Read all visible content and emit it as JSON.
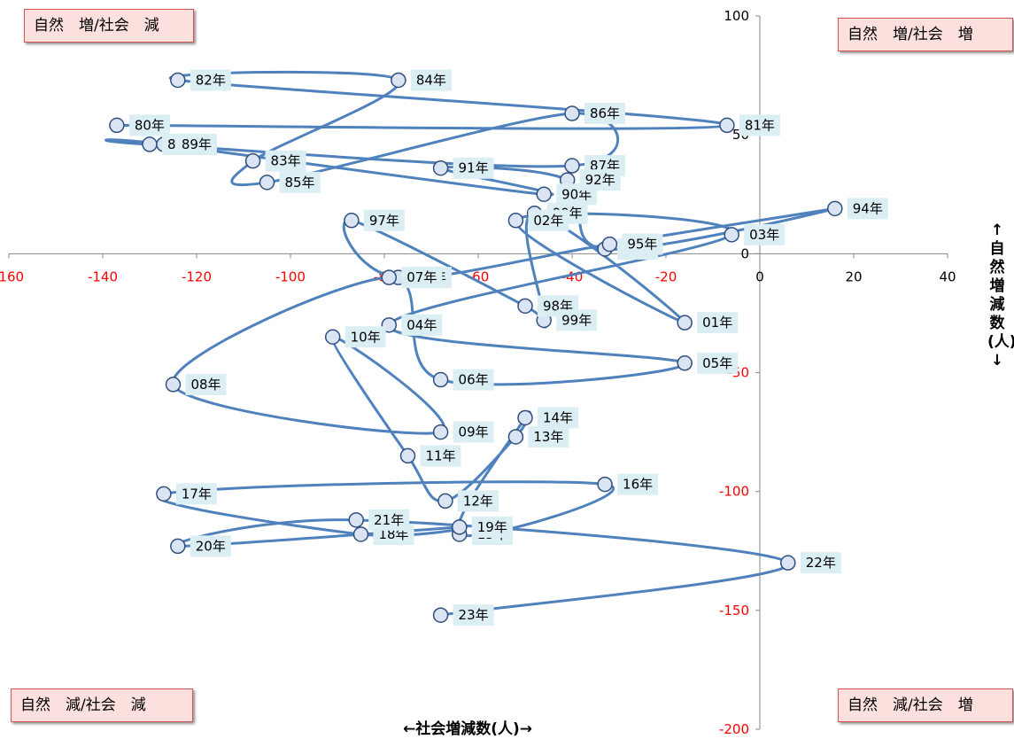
{
  "quadrants": {
    "top_left": "自然　増/社会　減",
    "top_right": "自然　増/社会　増",
    "bottom_left": "自然　減/社会　減",
    "bottom_right": "自然　減/社会　増"
  },
  "chart_data": {
    "type": "scatter",
    "title": "",
    "xlabel": "←社会増減数(人)→",
    "ylabel": "↑自然増減数(人)↓",
    "xlim": [
      -160,
      40
    ],
    "ylim": [
      -200,
      100
    ],
    "x_ticks": [
      -160,
      -140,
      -120,
      -100,
      -80,
      -60,
      -40,
      -20,
      0,
      20,
      40
    ],
    "y_ticks": [
      100,
      50,
      0,
      -50,
      -100,
      -150,
      -200
    ],
    "negative_tick_color": "#ff0000",
    "positive_tick_color": "#000000",
    "line_color": "#4f81bd",
    "marker_fill": "#dbe4f3",
    "marker_edge": "#2f4f7f",
    "label_bg": "#daeef3",
    "grid": false,
    "legend": "none",
    "points": [
      {
        "label": "80年",
        "x": -137,
        "y": 54
      },
      {
        "label": "81年",
        "x": -7,
        "y": 54
      },
      {
        "label": "82年",
        "x": -124,
        "y": 73
      },
      {
        "label": "84年",
        "x": -77,
        "y": 73
      },
      {
        "label": "83年",
        "x": -108,
        "y": 39
      },
      {
        "label": "85年",
        "x": -105,
        "y": 30
      },
      {
        "label": "86年",
        "x": -40,
        "y": 59
      },
      {
        "label": "87年",
        "x": -40,
        "y": 37
      },
      {
        "label": "88年",
        "x": -130,
        "y": 46
      },
      {
        "label": "89年",
        "x": -127,
        "y": 46
      },
      {
        "label": "90年",
        "x": -46,
        "y": 25
      },
      {
        "label": "91年",
        "x": -68,
        "y": 36
      },
      {
        "label": "92年",
        "x": -41,
        "y": 31
      },
      {
        "label": "93年",
        "x": -33,
        "y": 2
      },
      {
        "label": "94年",
        "x": 16,
        "y": 19
      },
      {
        "label": "95年",
        "x": -32,
        "y": 4
      },
      {
        "label": "96年",
        "x": -77,
        "y": -10
      },
      {
        "label": "97年",
        "x": -87,
        "y": 14
      },
      {
        "label": "98年",
        "x": -50,
        "y": -22
      },
      {
        "label": "99年",
        "x": -46,
        "y": -28
      },
      {
        "label": "00年",
        "x": -48,
        "y": 17
      },
      {
        "label": "01年",
        "x": -16,
        "y": -29
      },
      {
        "label": "02年",
        "x": -52,
        "y": 14
      },
      {
        "label": "03年",
        "x": -6,
        "y": 8
      },
      {
        "label": "04年",
        "x": -79,
        "y": -30
      },
      {
        "label": "05年",
        "x": -16,
        "y": -46
      },
      {
        "label": "06年",
        "x": -68,
        "y": -53
      },
      {
        "label": "07年",
        "x": -79,
        "y": -10
      },
      {
        "label": "08年",
        "x": -125,
        "y": -55
      },
      {
        "label": "09年",
        "x": -68,
        "y": -75
      },
      {
        "label": "10年",
        "x": -91,
        "y": -35
      },
      {
        "label": "11年",
        "x": -75,
        "y": -85
      },
      {
        "label": "12年",
        "x": -67,
        "y": -104
      },
      {
        "label": "13年",
        "x": -52,
        "y": -77
      },
      {
        "label": "14年",
        "x": -50,
        "y": -69
      },
      {
        "label": "15年",
        "x": -64,
        "y": -118
      },
      {
        "label": "16年",
        "x": -33,
        "y": -97
      },
      {
        "label": "17年",
        "x": -127,
        "y": -101
      },
      {
        "label": "18年",
        "x": -85,
        "y": -118
      },
      {
        "label": "19年",
        "x": -64,
        "y": -115
      },
      {
        "label": "20年",
        "x": -124,
        "y": -123
      },
      {
        "label": "21年",
        "x": -86,
        "y": -112
      },
      {
        "label": "22年",
        "x": 6,
        "y": -130
      },
      {
        "label": "23年",
        "x": -68,
        "y": -152
      }
    ]
  }
}
